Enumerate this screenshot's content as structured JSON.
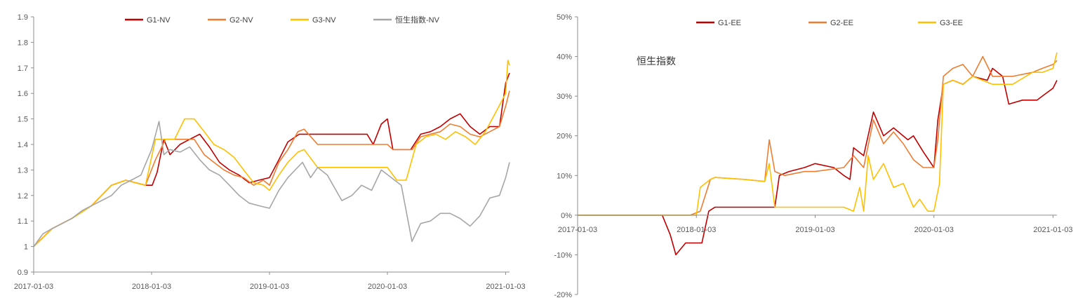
{
  "chart_data": [
    {
      "type": "line",
      "title": "",
      "xlabel": "",
      "ylabel": "",
      "ylim": [
        0.9,
        1.9
      ],
      "y_ticks": [
        "0.9",
        "1",
        "1.1",
        "1.2",
        "1.3",
        "1.4",
        "1.5",
        "1.6",
        "1.7",
        "1.8",
        "1.9"
      ],
      "x_ticks": [
        "2017-01-03",
        "2018-01-03",
        "2019-01-03",
        "2020-01-03",
        "2021-01-03"
      ],
      "grid": false,
      "legend_position": "top",
      "series": [
        {
          "name": "G1-NV",
          "color": "#c00000",
          "x": [
            "2017-01-03",
            "2017-03-01",
            "2017-05-01",
            "2017-07-01",
            "2017-09-01",
            "2017-10-15",
            "2017-12-15",
            "2018-01-05",
            "2018-01-20",
            "2018-02-10",
            "2018-03-01",
            "2018-04-01",
            "2018-05-01",
            "2018-06-01",
            "2018-07-01",
            "2018-08-01",
            "2018-09-01",
            "2018-10-01",
            "2018-11-01",
            "2018-12-01",
            "2019-01-03",
            "2019-02-01",
            "2019-03-01",
            "2019-04-05",
            "2019-05-01",
            "2019-06-01",
            "2019-08-01",
            "2019-10-01",
            "2019-11-01",
            "2019-11-20",
            "2019-12-15",
            "2020-01-03",
            "2020-01-20",
            "2020-02-10",
            "2020-03-15",
            "2020-04-15",
            "2020-05-15",
            "2020-06-15",
            "2020-07-15",
            "2020-08-15",
            "2020-09-15",
            "2020-10-15",
            "2020-11-15",
            "2020-12-15",
            "2021-01-03",
            "2021-01-15"
          ],
          "values": [
            1.0,
            1.07,
            1.11,
            1.16,
            1.24,
            1.26,
            1.24,
            1.24,
            1.29,
            1.42,
            1.36,
            1.4,
            1.42,
            1.44,
            1.39,
            1.33,
            1.3,
            1.28,
            1.25,
            1.26,
            1.27,
            1.34,
            1.41,
            1.44,
            1.44,
            1.44,
            1.44,
            1.44,
            1.44,
            1.4,
            1.48,
            1.5,
            1.38,
            1.38,
            1.38,
            1.44,
            1.45,
            1.47,
            1.5,
            1.52,
            1.47,
            1.44,
            1.47,
            1.47,
            1.64,
            1.68
          ]
        },
        {
          "name": "G2-NV",
          "color": "#ed7d31",
          "x": [
            "2017-01-03",
            "2017-03-01",
            "2017-05-01",
            "2017-07-01",
            "2017-09-01",
            "2017-10-15",
            "2017-12-15",
            "2018-01-15",
            "2018-02-15",
            "2018-03-15",
            "2018-04-15",
            "2018-05-15",
            "2018-06-15",
            "2018-07-15",
            "2018-08-15",
            "2018-09-15",
            "2018-10-15",
            "2018-11-15",
            "2018-12-15",
            "2019-01-03",
            "2019-02-01",
            "2019-03-01",
            "2019-04-01",
            "2019-04-20",
            "2019-06-01",
            "2019-09-01",
            "2019-12-01",
            "2020-01-03",
            "2020-01-20",
            "2020-03-01",
            "2020-03-20",
            "2020-04-15",
            "2020-05-15",
            "2020-06-15",
            "2020-07-15",
            "2020-08-15",
            "2020-09-15",
            "2020-10-15",
            "2020-11-15",
            "2020-12-15",
            "2021-01-03",
            "2021-01-15"
          ],
          "values": [
            1.0,
            1.07,
            1.11,
            1.16,
            1.24,
            1.26,
            1.24,
            1.34,
            1.42,
            1.42,
            1.42,
            1.42,
            1.36,
            1.33,
            1.3,
            1.28,
            1.27,
            1.24,
            1.26,
            1.24,
            1.33,
            1.38,
            1.45,
            1.46,
            1.4,
            1.4,
            1.4,
            1.4,
            1.38,
            1.38,
            1.38,
            1.43,
            1.44,
            1.45,
            1.48,
            1.47,
            1.44,
            1.43,
            1.45,
            1.47,
            1.55,
            1.61
          ]
        },
        {
          "name": "G3-NV",
          "color": "#ffc000",
          "x": [
            "2017-01-03",
            "2017-03-01",
            "2017-05-01",
            "2017-07-01",
            "2017-09-01",
            "2017-10-15",
            "2017-12-15",
            "2018-01-15",
            "2018-02-15",
            "2018-03-15",
            "2018-04-15",
            "2018-05-15",
            "2018-06-15",
            "2018-07-15",
            "2018-08-15",
            "2018-09-15",
            "2018-10-15",
            "2018-11-15",
            "2018-12-15",
            "2019-01-03",
            "2019-02-01",
            "2019-03-01",
            "2019-04-01",
            "2019-04-20",
            "2019-06-01",
            "2019-09-01",
            "2019-12-01",
            "2020-01-03",
            "2020-02-01",
            "2020-03-01",
            "2020-04-01",
            "2020-05-01",
            "2020-06-01",
            "2020-07-01",
            "2020-08-01",
            "2020-09-01",
            "2020-10-01",
            "2020-11-01",
            "2020-12-01",
            "2021-01-03",
            "2021-01-10",
            "2021-01-15"
          ],
          "values": [
            1.0,
            1.07,
            1.11,
            1.16,
            1.24,
            1.26,
            1.24,
            1.42,
            1.42,
            1.42,
            1.5,
            1.5,
            1.45,
            1.4,
            1.38,
            1.35,
            1.3,
            1.25,
            1.24,
            1.22,
            1.28,
            1.33,
            1.37,
            1.38,
            1.31,
            1.31,
            1.31,
            1.31,
            1.26,
            1.26,
            1.4,
            1.43,
            1.44,
            1.42,
            1.45,
            1.43,
            1.4,
            1.45,
            1.52,
            1.6,
            1.73,
            1.71
          ]
        },
        {
          "name": "恒生指数-NV",
          "color": "#a6a6a6",
          "x": [
            "2017-01-03",
            "2017-02-01",
            "2017-03-01",
            "2017-04-01",
            "2017-05-01",
            "2017-06-01",
            "2017-07-01",
            "2017-08-01",
            "2017-09-01",
            "2017-10-01",
            "2017-11-01",
            "2017-12-01",
            "2018-01-03",
            "2018-01-26",
            "2018-02-10",
            "2018-03-01",
            "2018-04-01",
            "2018-05-01",
            "2018-06-01",
            "2018-07-01",
            "2018-08-01",
            "2018-09-01",
            "2018-10-01",
            "2018-11-01",
            "2018-12-01",
            "2019-01-03",
            "2019-02-01",
            "2019-03-01",
            "2019-04-15",
            "2019-05-10",
            "2019-06-01",
            "2019-07-01",
            "2019-08-15",
            "2019-09-15",
            "2019-10-15",
            "2019-11-15",
            "2019-12-15",
            "2020-01-15",
            "2020-02-15",
            "2020-03-19",
            "2020-04-15",
            "2020-05-15",
            "2020-06-15",
            "2020-07-15",
            "2020-08-15",
            "2020-09-15",
            "2020-10-15",
            "2020-11-15",
            "2020-12-15",
            "2021-01-03",
            "2021-01-15"
          ],
          "values": [
            1.0,
            1.05,
            1.07,
            1.09,
            1.11,
            1.14,
            1.16,
            1.18,
            1.2,
            1.24,
            1.26,
            1.28,
            1.38,
            1.49,
            1.36,
            1.38,
            1.37,
            1.39,
            1.34,
            1.3,
            1.28,
            1.24,
            1.2,
            1.17,
            1.16,
            1.15,
            1.22,
            1.27,
            1.33,
            1.27,
            1.31,
            1.28,
            1.18,
            1.2,
            1.24,
            1.22,
            1.3,
            1.27,
            1.24,
            1.02,
            1.09,
            1.1,
            1.13,
            1.13,
            1.11,
            1.08,
            1.12,
            1.19,
            1.2,
            1.27,
            1.33
          ]
        }
      ]
    },
    {
      "type": "line",
      "title": "",
      "annotation": "恒生指数",
      "xlabel": "",
      "ylabel": "",
      "ylim": [
        -0.2,
        0.5
      ],
      "y_ticks": [
        "-20%",
        "-10%",
        "0%",
        "10%",
        "20%",
        "30%",
        "40%",
        "50%"
      ],
      "x_ticks": [
        "2017-01-03",
        "2018-01-03",
        "2019-01-03",
        "2020-01-03",
        "2021-01-03"
      ],
      "grid": false,
      "legend_position": "top",
      "series": [
        {
          "name": "G1-EE",
          "color": "#c00000",
          "x": [
            "2017-01-03",
            "2017-09-20",
            "2017-10-15",
            "2017-11-01",
            "2017-12-01",
            "2018-01-03",
            "2018-01-20",
            "2018-02-10",
            "2018-03-01",
            "2018-06-01",
            "2018-09-01",
            "2018-09-15",
            "2018-10-15",
            "2018-12-01",
            "2019-01-03",
            "2019-03-01",
            "2019-04-01",
            "2019-04-20",
            "2019-05-01",
            "2019-06-01",
            "2019-07-01",
            "2019-08-01",
            "2019-09-01",
            "2019-10-15",
            "2019-11-01",
            "2019-12-01",
            "2020-01-03",
            "2020-01-15",
            "2020-02-01",
            "2020-03-01",
            "2020-04-01",
            "2020-05-01",
            "2020-06-15",
            "2020-07-01",
            "2020-08-01",
            "2020-08-20",
            "2020-10-01",
            "2020-11-15",
            "2020-12-01",
            "2021-01-03",
            "2021-01-15"
          ],
          "values": [
            0,
            0,
            -0.05,
            -0.1,
            -0.07,
            -0.07,
            -0.07,
            0.01,
            0.02,
            0.02,
            0.02,
            0.1,
            0.11,
            0.12,
            0.13,
            0.12,
            0.1,
            0.09,
            0.17,
            0.15,
            0.26,
            0.2,
            0.22,
            0.19,
            0.2,
            0.16,
            0.12,
            0.24,
            0.33,
            0.34,
            0.33,
            0.35,
            0.34,
            0.37,
            0.35,
            0.28,
            0.29,
            0.29,
            0.3,
            0.32,
            0.34
          ]
        },
        {
          "name": "G2-EE",
          "color": "#ed7d31",
          "x": [
            "2017-01-03",
            "2017-12-15",
            "2018-01-15",
            "2018-02-15",
            "2018-03-01",
            "2018-06-01",
            "2018-08-01",
            "2018-08-15",
            "2018-09-01",
            "2018-10-01",
            "2018-12-01",
            "2019-01-03",
            "2019-04-01",
            "2019-05-01",
            "2019-06-01",
            "2019-07-01",
            "2019-08-01",
            "2019-09-01",
            "2019-10-01",
            "2019-11-01",
            "2019-12-01",
            "2020-01-03",
            "2020-01-15",
            "2020-02-01",
            "2020-03-01",
            "2020-04-01",
            "2020-05-01",
            "2020-06-01",
            "2020-07-01",
            "2020-09-01",
            "2020-11-01",
            "2020-12-01",
            "2021-01-03",
            "2021-01-15"
          ],
          "values": [
            0,
            0,
            0.01,
            0.09,
            0.095,
            0.09,
            0.085,
            0.19,
            0.11,
            0.1,
            0.11,
            0.11,
            0.12,
            0.15,
            0.12,
            0.24,
            0.18,
            0.21,
            0.18,
            0.14,
            0.12,
            0.12,
            0.19,
            0.35,
            0.37,
            0.38,
            0.35,
            0.4,
            0.35,
            0.35,
            0.36,
            0.37,
            0.38,
            0.39
          ]
        },
        {
          "name": "G3-EE",
          "color": "#ffc000",
          "x": [
            "2017-01-03",
            "2017-12-15",
            "2018-01-03",
            "2018-01-15",
            "2018-02-15",
            "2018-03-01",
            "2018-06-01",
            "2018-08-01",
            "2018-08-15",
            "2018-09-01",
            "2018-10-01",
            "2019-01-03",
            "2019-04-01",
            "2019-05-01",
            "2019-05-20",
            "2019-06-01",
            "2019-06-15",
            "2019-07-01",
            "2019-08-01",
            "2019-09-01",
            "2019-10-01",
            "2019-11-01",
            "2019-11-20",
            "2019-12-15",
            "2020-01-03",
            "2020-01-20",
            "2020-02-01",
            "2020-03-01",
            "2020-04-01",
            "2020-05-01",
            "2020-07-01",
            "2020-09-01",
            "2020-11-01",
            "2020-12-01",
            "2021-01-03",
            "2021-01-15"
          ],
          "values": [
            0,
            0,
            0,
            0.07,
            0.09,
            0.095,
            0.09,
            0.085,
            0.13,
            0.02,
            0.02,
            0.02,
            0.02,
            0.01,
            0.07,
            0.01,
            0.15,
            0.09,
            0.13,
            0.07,
            0.08,
            0.02,
            0.04,
            0.01,
            0.01,
            0.08,
            0.33,
            0.34,
            0.33,
            0.35,
            0.33,
            0.33,
            0.36,
            0.36,
            0.37,
            0.41
          ]
        }
      ]
    }
  ]
}
